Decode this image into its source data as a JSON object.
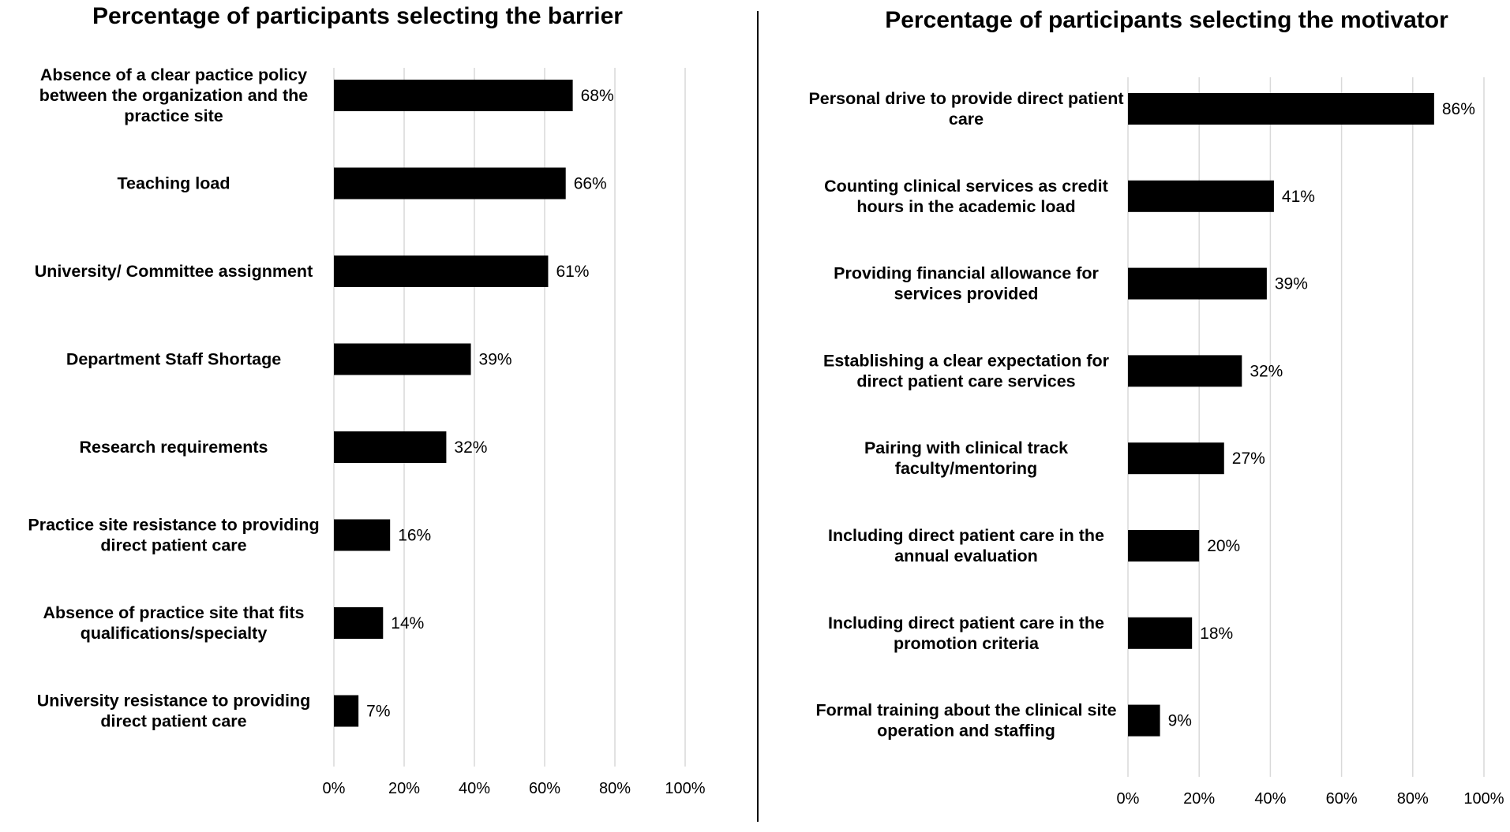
{
  "chart_data": [
    {
      "type": "bar",
      "orientation": "horizontal",
      "title": "Percentage of participants selecting the barrier",
      "categories": [
        "Absence of a clear pactice policy between the organization and the practice site",
        "Teaching load",
        "University/ Committee assignment",
        "Department Staff Shortage",
        "Research requirements",
        "Practice site resistance to providing direct patient care",
        "Absence of practice site that fits qualifications/specialty",
        "University resistance to providing direct patient care"
      ],
      "category_lines": [
        [
          "Absence of a clear pactice policy",
          "between the organization and the",
          "practice site"
        ],
        [
          "Teaching load"
        ],
        [
          "University/ Committee assignment"
        ],
        [
          "Department Staff Shortage"
        ],
        [
          "Research requirements"
        ],
        [
          "Practice site resistance to providing",
          "direct patient care"
        ],
        [
          "Absence of practice site that fits",
          "qualifications/specialty"
        ],
        [
          "University resistance to providing",
          "direct patient care"
        ]
      ],
      "values": [
        68,
        66,
        61,
        39,
        32,
        16,
        14,
        7
      ],
      "value_labels": [
        "68%",
        "66%",
        "61%",
        "39%",
        "32%",
        "16%",
        "14%",
        "7%"
      ],
      "xlim": [
        0,
        100
      ],
      "xticks": [
        0,
        20,
        40,
        60,
        80,
        100
      ],
      "xtick_labels": [
        "0%",
        "20%",
        "40%",
        "60%",
        "80%",
        "100%"
      ],
      "grid": true,
      "bar_color": "#000000",
      "gridline_color": "#d9d9d9"
    },
    {
      "type": "bar",
      "orientation": "horizontal",
      "title": "Percentage of participants selecting the motivator",
      "categories": [
        "Personal drive to provide direct patient care",
        "Counting clinical services as credit hours in the academic load",
        "Providing financial allowance for services provided",
        "Establishing a clear expectation for direct patient care services",
        "Pairing with clinical track faculty/mentoring",
        "Including direct patient care in the annual evaluation",
        "Including direct patient care in the promotion criteria",
        "Formal training about the clinical site operation and staffing"
      ],
      "category_lines": [
        [
          "Personal drive to provide direct patient",
          "care"
        ],
        [
          "Counting clinical services as credit",
          "hours in the academic load"
        ],
        [
          "Providing financial allowance for",
          "services provided"
        ],
        [
          "Establishing a clear expectation for",
          "direct patient care services"
        ],
        [
          "Pairing with clinical track",
          "faculty/mentoring"
        ],
        [
          "Including direct patient care in the",
          "annual evaluation"
        ],
        [
          "Including direct patient care in the",
          "promotion criteria"
        ],
        [
          "Formal training about the clinical site",
          "operation and staffing"
        ]
      ],
      "values": [
        86,
        41,
        39,
        32,
        27,
        20,
        18,
        9
      ],
      "value_labels": [
        "86%",
        "41%",
        "39%",
        "32%",
        "27%",
        "20%",
        "18%",
        "9%"
      ],
      "xlim": [
        0,
        100
      ],
      "xticks": [
        0,
        20,
        40,
        60,
        80,
        100
      ],
      "xtick_labels": [
        "0%",
        "20%",
        "40%",
        "60%",
        "80%",
        "100%"
      ],
      "grid": true,
      "bar_color": "#000000",
      "gridline_color": "#d9d9d9"
    }
  ]
}
